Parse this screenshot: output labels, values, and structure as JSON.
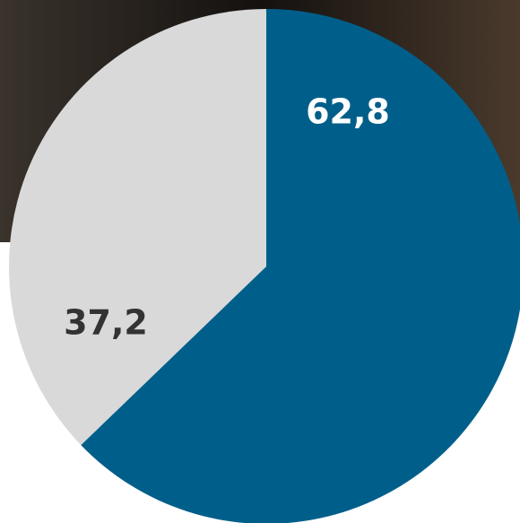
{
  "chart_data": {
    "type": "pie",
    "values": [
      62.8,
      37.2
    ],
    "value_labels": [
      "62,8",
      "37,2"
    ],
    "colors": [
      "#005f8a",
      "#d9d9d9"
    ],
    "label_colors": [
      "#ffffff",
      "#333333"
    ]
  }
}
